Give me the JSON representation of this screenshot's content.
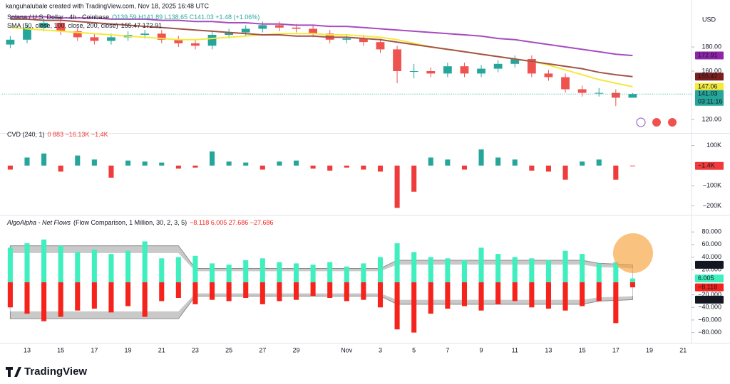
{
  "header": {
    "credit": "kanguhalubale created with TradingView.com, Nov 18, 2025 16:48 UTC",
    "currency": "USD"
  },
  "chart_data": [
    {
      "type": "candlestick",
      "title": "Solana / U.S. Dollar · 4h · Coinbase",
      "subtitle": "O139.59 H141.89 L138.65 C141.03 +1.48 (+1.06%)",
      "indicator": "SMA (50, close, 100, close, 200, close)",
      "indicator_values": "155.47 172.91",
      "categories": [
        null,
        "13",
        null,
        "15",
        null,
        "17",
        null,
        "19",
        null,
        "21",
        null,
        "23",
        null,
        "25",
        null,
        "27",
        null,
        "29",
        null,
        null,
        "Nov",
        null,
        "3",
        null,
        "5",
        null,
        "7",
        null,
        "9",
        null,
        "11",
        null,
        "13",
        null,
        "15",
        null,
        "17",
        null,
        "19",
        null,
        "21"
      ],
      "open": [
        182,
        186,
        196,
        200,
        193,
        188,
        185,
        188,
        190,
        191,
        186,
        183,
        181,
        190,
        192,
        195,
        198,
        196,
        195,
        191,
        186,
        187,
        184,
        178,
        160,
        160,
        158,
        164,
        158,
        162,
        166,
        170,
        158,
        155,
        145,
        142,
        142,
        138,
        null,
        null,
        null
      ],
      "high": [
        189,
        199,
        203,
        203,
        196,
        191,
        191,
        193,
        194,
        194,
        189,
        186,
        193,
        195,
        198,
        201,
        201,
        199,
        198,
        194,
        190,
        190,
        187,
        181,
        166,
        163,
        167,
        167,
        165,
        169,
        173,
        173,
        161,
        158,
        148,
        146,
        145,
        141.89,
        null,
        null,
        null
      ],
      "low": [
        179,
        183,
        193,
        190,
        185,
        182,
        182,
        185,
        187,
        183,
        180,
        178,
        178,
        187,
        189,
        192,
        193,
        192,
        188,
        183,
        183,
        181,
        175,
        150,
        154,
        155,
        155,
        155,
        155,
        159,
        163,
        155,
        152,
        142,
        139,
        139,
        131,
        138.65,
        null,
        null,
        null
      ],
      "close": [
        186,
        196,
        200,
        193,
        188,
        185,
        188,
        190,
        191,
        186,
        183,
        181,
        190,
        192,
        195,
        198,
        196,
        195,
        191,
        186,
        187,
        184,
        178,
        160,
        160,
        158,
        164,
        158,
        162,
        166,
        170,
        158,
        155,
        145,
        142,
        142,
        138,
        141.03,
        null,
        null,
        null
      ],
      "up_color": "#26a69a",
      "down_color": "#ef5350",
      "series": [
        {
          "color": "#f5e93b",
          "values": [
            196,
            195,
            194,
            193,
            192,
            191,
            190,
            189,
            188,
            187,
            186,
            186,
            187,
            188,
            189,
            190,
            191,
            191,
            191,
            190,
            190,
            189,
            188,
            186,
            183,
            180,
            178,
            176,
            174,
            172,
            170,
            168,
            165,
            161,
            157,
            153,
            150,
            147.06,
            null,
            null,
            null
          ]
        },
        {
          "color": "#a1544a",
          "values": [
            203,
            203,
            202,
            202,
            201,
            200,
            199,
            198,
            197,
            196,
            195,
            194,
            193,
            192,
            191,
            190,
            190,
            189,
            189,
            188,
            188,
            187,
            186,
            184,
            182,
            180,
            178,
            176,
            174,
            172,
            170,
            168,
            166,
            164,
            162,
            159,
            157,
            155.47,
            null,
            null,
            null
          ]
        },
        {
          "color": "#a64cc0",
          "values": [
            205,
            205,
            205,
            204,
            204,
            204,
            203,
            203,
            203,
            202,
            202,
            201,
            201,
            200,
            200,
            199,
            199,
            198,
            198,
            197,
            197,
            196,
            195,
            194,
            193,
            192,
            191,
            190,
            189,
            187,
            186,
            184,
            182,
            180,
            178,
            176,
            174,
            172.91,
            null,
            null,
            null
          ]
        }
      ],
      "ylim": [
        110,
        210
      ],
      "yticks": [
        {
          "value": 120,
          "label": "120.00"
        },
        {
          "value": 160,
          "label": "160.00"
        },
        {
          "value": 180,
          "label": "180.00"
        }
      ],
      "tags": [
        {
          "value": 172.91,
          "color": "#8e24aa"
        },
        {
          "value": 155.47,
          "color": "#7b1e1e"
        },
        {
          "value": 147.06,
          "color": "#f5e93b",
          "text_color": "#131722"
        },
        {
          "value": 141.03,
          "color": "#26a69a",
          "countdown": "03:11:16"
        }
      ]
    },
    {
      "type": "bar",
      "title": "CVD (240, 1)",
      "subtitle": "0 883 −16.13K −1.4K",
      "values": [
        -20,
        40,
        60,
        -30,
        50,
        30,
        -60,
        25,
        20,
        15,
        -15,
        -10,
        70,
        20,
        15,
        -20,
        20,
        25,
        -15,
        -25,
        -10,
        -20,
        -30,
        -210,
        -130,
        40,
        30,
        -20,
        80,
        40,
        30,
        -25,
        -30,
        -70,
        20,
        30,
        -70,
        -1.4,
        null,
        null,
        null
      ],
      "pos_color": "#26a69a",
      "neg_color": "#ef3b3b",
      "ylim": [
        -237,
        130
      ],
      "yticks": [
        {
          "value": 100,
          "label": "100K"
        },
        {
          "value": -100,
          "label": "−100K"
        },
        {
          "value": -200,
          "label": "−200K"
        }
      ],
      "tags": [
        {
          "value": -1.4,
          "label": "−1.4K",
          "color": "#ef3b3b"
        }
      ]
    },
    {
      "type": "diverging-bar",
      "title": "AlgoAlpha - Net Flows",
      "subtitle": "(Flow Comparison, 1 Million, 30, 2, 3, 5)",
      "legend_values": "−8.118 6.005 27.686 −27.686",
      "inflow": [
        55,
        62,
        68,
        58,
        48,
        52,
        45,
        50,
        65,
        38,
        40,
        42,
        30,
        28,
        35,
        38,
        32,
        30,
        28,
        32,
        25,
        30,
        40,
        62,
        48,
        40,
        38,
        35,
        55,
        45,
        40,
        38,
        35,
        50,
        45,
        30,
        32,
        6.005,
        null,
        null,
        null
      ],
      "outflow": [
        -40,
        -50,
        -62,
        -55,
        -45,
        -42,
        -48,
        -38,
        -55,
        -30,
        -25,
        -35,
        -28,
        -30,
        -25,
        -35,
        -30,
        -28,
        -22,
        -25,
        -30,
        -28,
        -40,
        -75,
        -80,
        -50,
        -42,
        -38,
        -45,
        -35,
        -30,
        -40,
        -42,
        -45,
        -38,
        -30,
        -65,
        -8.118,
        null,
        null,
        null
      ],
      "upper": [
        58,
        58,
        58,
        58,
        58,
        58,
        58,
        58,
        58,
        58,
        58,
        22,
        22,
        22,
        22,
        22,
        22,
        22,
        22,
        22,
        22,
        22,
        22,
        35,
        35,
        35,
        35,
        35,
        35,
        35,
        35,
        35,
        35,
        35,
        35,
        30,
        29,
        27.686,
        null,
        null,
        null
      ],
      "lower": [
        -58,
        -58,
        -58,
        -58,
        -58,
        -58,
        -58,
        -58,
        -58,
        -58,
        -58,
        -22,
        -22,
        -22,
        -22,
        -22,
        -22,
        -22,
        -22,
        -22,
        -22,
        -22,
        -22,
        -35,
        -35,
        -35,
        -35,
        -35,
        -35,
        -35,
        -35,
        -35,
        -35,
        -35,
        -35,
        -30,
        -29,
        -27.686,
        null,
        null,
        null
      ],
      "inflow_color": "#3ff0be",
      "outflow_color": "#f5231c",
      "band_color": "#c9c9c9",
      "ylim": [
        -94,
        87
      ],
      "yticks": [
        {
          "value": 80,
          "label": "80.000"
        },
        {
          "value": 60,
          "label": "60.000"
        },
        {
          "value": 40,
          "label": "40.000"
        },
        {
          "value": 20,
          "label": "20.000"
        },
        {
          "value": -20,
          "label": "−20.000"
        },
        {
          "value": -40,
          "label": "−40.000"
        },
        {
          "value": -60,
          "label": "−60.000"
        },
        {
          "value": -80,
          "label": "−80.000"
        }
      ],
      "tags": [
        {
          "value": 27.686,
          "color": "#131722"
        },
        {
          "value": 6.005,
          "color": "#3ff0be",
          "text_color": "#131722"
        },
        {
          "value": -8.118,
          "label": "−8.118",
          "color": "#f5231c"
        },
        {
          "value": -27.686,
          "label": "−27.686",
          "color": "#131722"
        }
      ]
    }
  ],
  "footer": {
    "logo": "TradingView"
  }
}
